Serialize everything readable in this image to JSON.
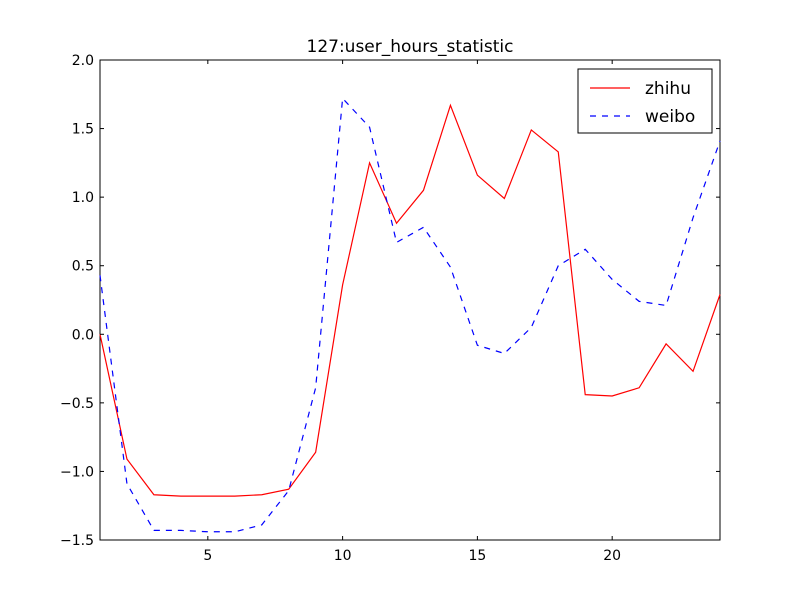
{
  "chart_data": {
    "type": "line",
    "title": "127:user_hours_statistic",
    "xlabel": "",
    "ylabel": "",
    "xlim": [
      1,
      24
    ],
    "ylim": [
      -1.5,
      2.0
    ],
    "xticks": [
      5,
      10,
      15,
      20
    ],
    "yticks": [
      -1.5,
      -1.0,
      -0.5,
      0.0,
      0.5,
      1.0,
      1.5,
      2.0
    ],
    "xtick_labels": [
      "5",
      "10",
      "15",
      "20"
    ],
    "ytick_labels": [
      "−1.5",
      "−1.0",
      "−0.5",
      "0.0",
      "0.5",
      "1.0",
      "1.5",
      "2.0"
    ],
    "grid": false,
    "legend_position": "top-right",
    "x": [
      1,
      2,
      3,
      4,
      5,
      6,
      7,
      8,
      9,
      10,
      11,
      12,
      13,
      14,
      15,
      16,
      17,
      18,
      19,
      20,
      21,
      22,
      23,
      24
    ],
    "series": [
      {
        "name": "zhihu",
        "color": "#ff0000",
        "style": "solid",
        "values": [
          0.0,
          -0.91,
          -1.17,
          -1.18,
          -1.18,
          -1.18,
          -1.17,
          -1.13,
          -0.86,
          0.36,
          1.25,
          0.81,
          1.05,
          1.67,
          1.16,
          0.99,
          1.49,
          1.33,
          -0.44,
          -0.45,
          -0.39,
          -0.07,
          -0.27,
          0.29
        ]
      },
      {
        "name": "weibo",
        "color": "#0000ff",
        "style": "dashed",
        "values": [
          0.43,
          -1.09,
          -1.43,
          -1.43,
          -1.44,
          -1.44,
          -1.39,
          -1.14,
          -0.39,
          1.72,
          1.51,
          0.67,
          0.78,
          0.49,
          -0.08,
          -0.14,
          0.05,
          0.5,
          0.62,
          0.4,
          0.24,
          0.21,
          0.85,
          1.41
        ]
      }
    ]
  }
}
